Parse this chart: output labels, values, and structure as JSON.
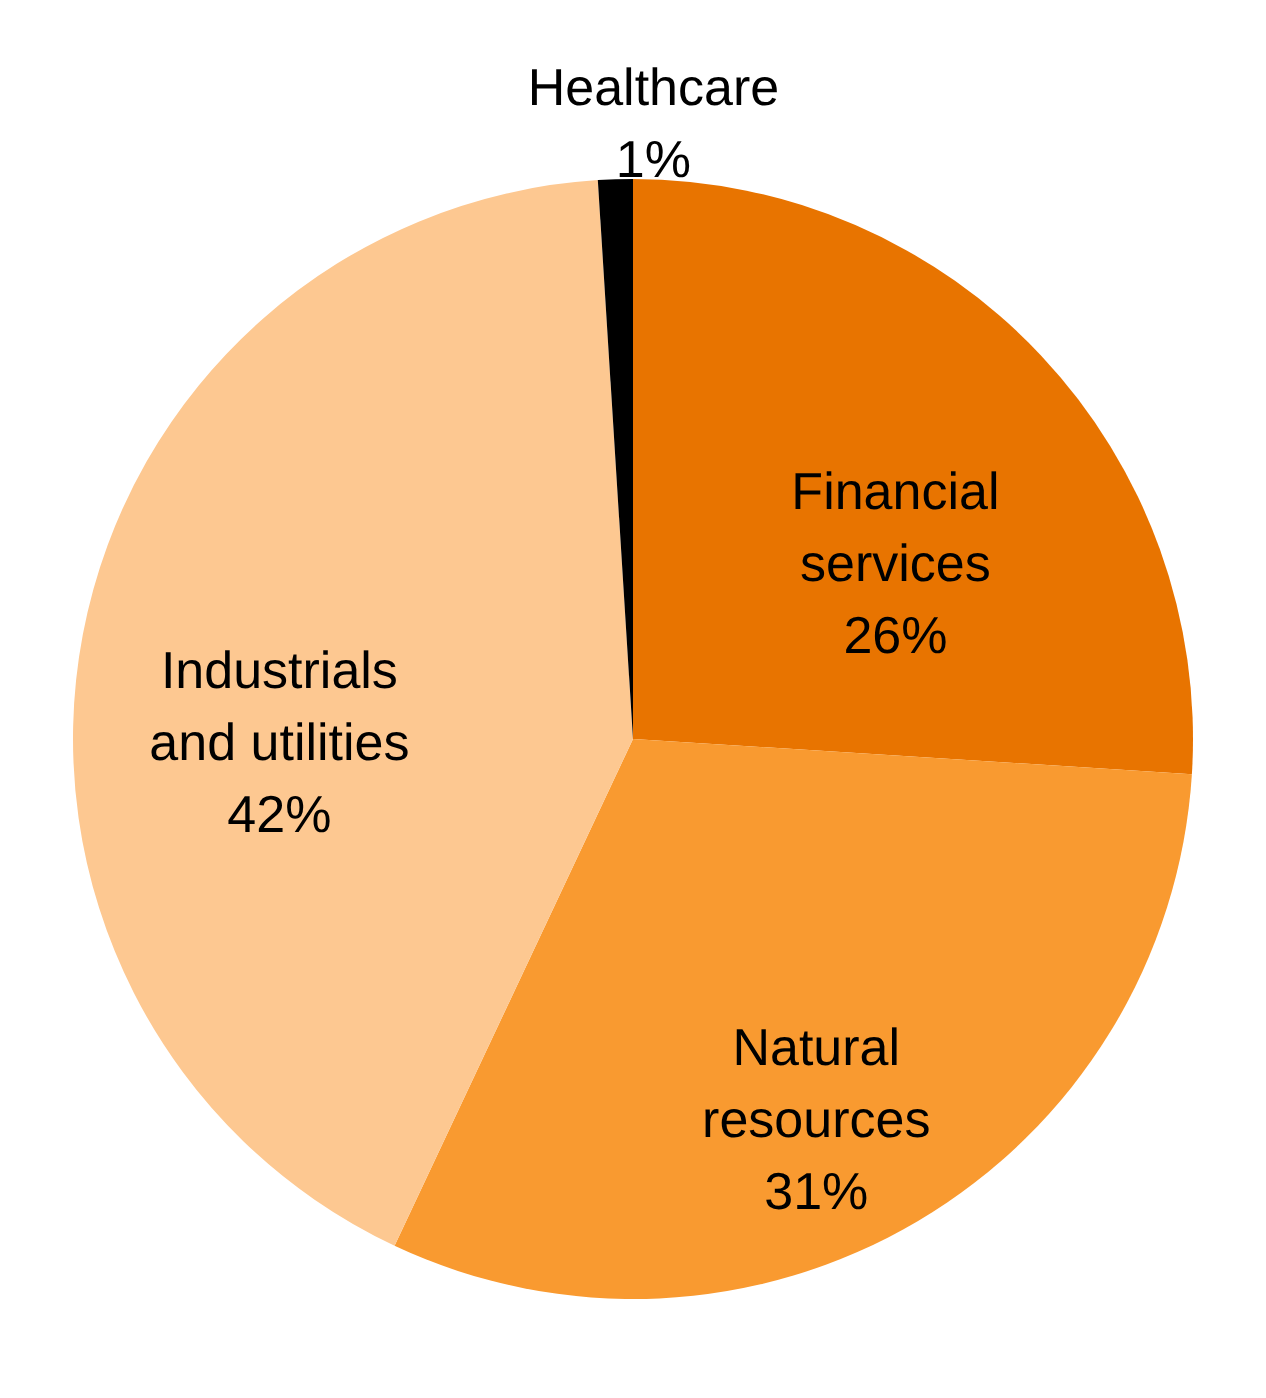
{
  "chart_data": {
    "type": "pie",
    "categories": [
      "Financial services",
      "Natural resources",
      "Industrials and utilities",
      "Healthcare"
    ],
    "values": [
      26,
      31,
      42,
      1
    ],
    "colors": [
      "#e87400",
      "#f99a30",
      "#fdc891",
      "#000000"
    ],
    "value_labels": [
      "26%",
      "31%",
      "42%",
      "1%"
    ]
  }
}
